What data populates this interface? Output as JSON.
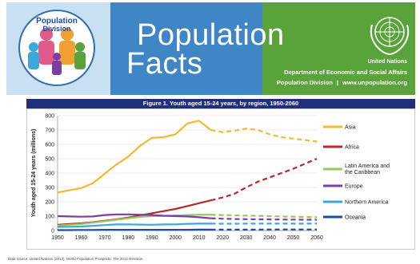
{
  "banner": {
    "logo_text_1": "Population",
    "logo_text_2": "Division",
    "title_line1": "Population",
    "title_line2": "Facts",
    "org_name": "United Nations",
    "department": "Department of Economic and Social Affairs",
    "division": "Population Division",
    "separator": "|",
    "website": "www.unpopulation.org",
    "colors": {
      "blue": "#3f86c7",
      "green": "#5aa33a",
      "light": "#c9dff2",
      "title_bar": "#1f2f7a"
    },
    "icons": [
      "population-division-logo",
      "un-emblem"
    ]
  },
  "figure_title": "Figure 1. Youth aged 15-24 years, by region, 1950-2060",
  "source_note": "Data source: United Nations (2013). World Population Prospects: The 2012 Revision.",
  "chart_data": {
    "type": "line",
    "title": "Figure 1. Youth aged 15-24 years, by region, 1950-2060",
    "xlabel": "",
    "ylabel": "Youth aged 15-24 years (millions)",
    "xlim": [
      1950,
      2060
    ],
    "ylim": [
      0,
      800
    ],
    "xticks": [
      1950,
      1960,
      1970,
      1980,
      1990,
      2000,
      2010,
      2020,
      2030,
      2040,
      2050,
      2060
    ],
    "yticks": [
      0,
      100,
      200,
      300,
      400,
      500,
      600,
      700,
      800
    ],
    "grid": "horizontal",
    "legend_position": "right",
    "projection_start": 2015,
    "projection_style": "dashed",
    "x": [
      1950,
      1955,
      1960,
      1965,
      1970,
      1975,
      1980,
      1985,
      1990,
      1995,
      2000,
      2005,
      2010,
      2015,
      2020,
      2025,
      2030,
      2035,
      2040,
      2045,
      2050,
      2055,
      2060
    ],
    "series": [
      {
        "name": "Asia",
        "color": "#f5b82e",
        "values": [
          265,
          280,
          295,
          330,
          395,
          460,
          515,
          590,
          645,
          650,
          670,
          745,
          765,
          700,
          685,
          695,
          710,
          700,
          670,
          650,
          640,
          630,
          620
        ]
      },
      {
        "name": "Africa",
        "color": "#b5282c",
        "values": [
          40,
          45,
          50,
          58,
          68,
          78,
          90,
          105,
          120,
          135,
          150,
          170,
          190,
          210,
          230,
          255,
          300,
          340,
          370,
          400,
          430,
          465,
          500
        ]
      },
      {
        "name": "Latin America and the Caribbean",
        "color": "#96c95a",
        "values": [
          35,
          40,
          45,
          55,
          65,
          75,
          85,
          95,
          100,
          102,
          105,
          108,
          110,
          110,
          108,
          106,
          104,
          102,
          100,
          98,
          96,
          94,
          92
        ]
      },
      {
        "name": "Europe",
        "color": "#7b3ea6",
        "values": [
          100,
          98,
          96,
          98,
          108,
          112,
          112,
          110,
          108,
          103,
          100,
          98,
          92,
          85,
          82,
          80,
          79,
          78,
          77,
          76,
          76,
          75,
          75
        ]
      },
      {
        "name": "Northern America",
        "color": "#3aa7dd",
        "values": [
          25,
          26,
          28,
          33,
          38,
          42,
          43,
          41,
          40,
          42,
          43,
          46,
          48,
          48,
          47,
          47,
          48,
          48,
          48,
          48,
          48,
          48,
          48
        ]
      },
      {
        "name": "Oceania",
        "color": "#1f4e9c",
        "values": [
          3,
          3,
          4,
          4,
          5,
          5,
          5,
          5,
          5,
          5,
          5,
          5,
          6,
          6,
          6,
          6,
          6,
          6,
          7,
          7,
          7,
          7,
          7
        ]
      }
    ]
  }
}
